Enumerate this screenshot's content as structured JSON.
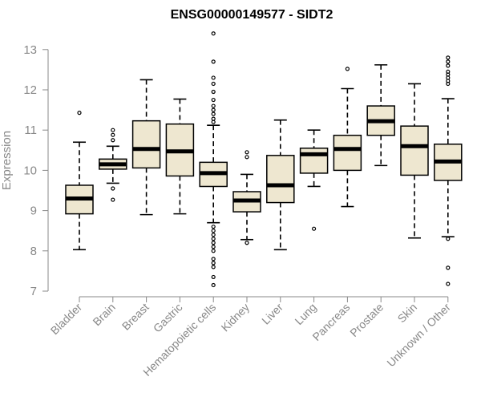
{
  "chart_data": {
    "type": "box",
    "title": "ENSG00000149577 - SIDT2",
    "xlabel": "",
    "ylabel": "Expression",
    "ylim": [
      7,
      13.4
    ],
    "yticks": [
      "7",
      "8",
      "9",
      "10",
      "11",
      "12",
      "13"
    ],
    "box_color": "#EEE7D0",
    "categories": [
      "Bladder",
      "Brain",
      "Breast",
      "Gastric",
      "Hematopoietic cells",
      "Kidney",
      "Liver",
      "Lung",
      "Pancreas",
      "Prostate",
      "Skin",
      "Unknown / Other"
    ],
    "boxes": [
      {
        "min": 8.03,
        "q1": 8.92,
        "median": 9.3,
        "q3": 9.63,
        "max": 10.7,
        "outliers": [
          11.43
        ]
      },
      {
        "min": 9.68,
        "q1": 10.03,
        "median": 10.15,
        "q3": 10.28,
        "max": 10.6,
        "outliers": [
          11.0,
          10.88,
          10.75,
          9.55,
          9.27
        ]
      },
      {
        "min": 8.9,
        "q1": 10.06,
        "median": 10.53,
        "q3": 11.23,
        "max": 12.25,
        "outliers": []
      },
      {
        "min": 8.92,
        "q1": 9.86,
        "median": 10.47,
        "q3": 11.15,
        "max": 11.77,
        "outliers": []
      },
      {
        "min": 8.7,
        "q1": 9.6,
        "median": 9.93,
        "q3": 10.2,
        "max": 11.12,
        "outliers": [
          13.4,
          12.7,
          12.3,
          12.15,
          11.95,
          11.75,
          11.6,
          11.5,
          11.4,
          11.28,
          11.2,
          8.6,
          8.5,
          8.4,
          8.3,
          8.2,
          8.1,
          8.0,
          7.8,
          7.7,
          7.6,
          7.35,
          7.15
        ]
      },
      {
        "min": 8.28,
        "q1": 8.97,
        "median": 9.25,
        "q3": 9.47,
        "max": 9.9,
        "outliers": [
          10.45,
          10.33,
          8.2
        ]
      },
      {
        "min": 8.03,
        "q1": 9.2,
        "median": 9.63,
        "q3": 10.37,
        "max": 11.25,
        "outliers": []
      },
      {
        "min": 9.6,
        "q1": 9.93,
        "median": 10.4,
        "q3": 10.55,
        "max": 11.0,
        "outliers": [
          8.55
        ]
      },
      {
        "min": 9.1,
        "q1": 10.0,
        "median": 10.53,
        "q3": 10.87,
        "max": 12.03,
        "outliers": [
          12.52
        ]
      },
      {
        "min": 10.12,
        "q1": 10.87,
        "median": 11.22,
        "q3": 11.6,
        "max": 12.62,
        "outliers": []
      },
      {
        "min": 8.32,
        "q1": 9.88,
        "median": 10.6,
        "q3": 11.1,
        "max": 12.15,
        "outliers": []
      },
      {
        "min": 8.35,
        "q1": 9.75,
        "median": 10.22,
        "q3": 10.65,
        "max": 11.78,
        "outliers": [
          12.8,
          12.7,
          12.6,
          12.45,
          12.38,
          12.3,
          12.22,
          12.15,
          8.3,
          7.58,
          7.18
        ]
      }
    ]
  }
}
